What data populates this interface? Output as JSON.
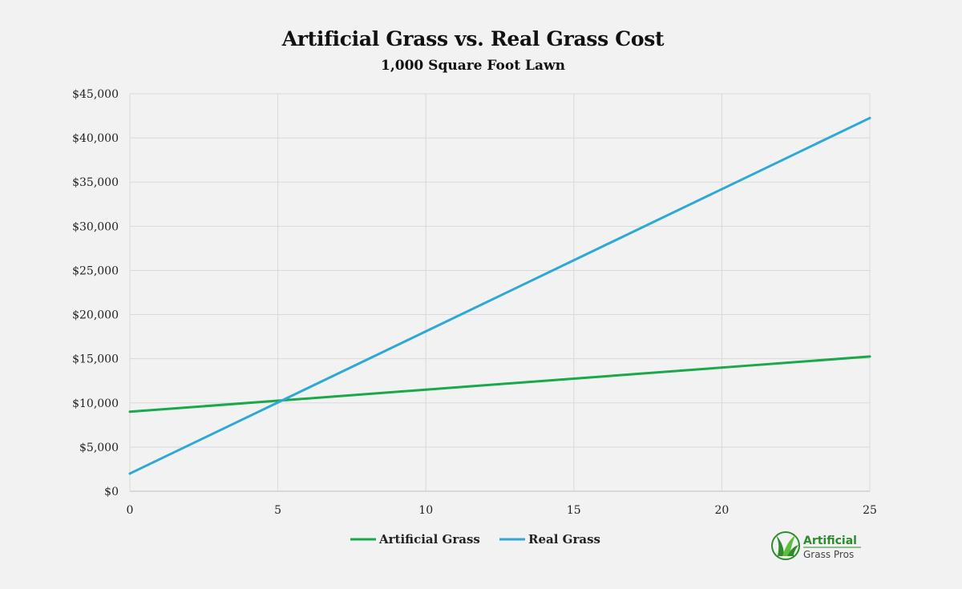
{
  "chart_data": {
    "type": "line",
    "title": "Artificial Grass vs. Real Grass Cost",
    "subtitle": "1,000 Square Foot Lawn",
    "xlabel": "",
    "ylabel": "",
    "x": [
      0,
      5,
      10,
      15,
      20,
      25
    ],
    "x_ticks": [
      "0",
      "5",
      "10",
      "15",
      "20",
      "25"
    ],
    "y_ticks": [
      "$0",
      "$5,000",
      "$10,000",
      "$15,000",
      "$20,000",
      "$25,000",
      "$30,000",
      "$35,000",
      "$40,000",
      "$45,000"
    ],
    "xlim": [
      0,
      25
    ],
    "ylim": [
      0,
      45000
    ],
    "grid": true,
    "legend_position": "bottom",
    "series": [
      {
        "name": "Artificial Grass",
        "color": "#1aa84a",
        "values": [
          9000,
          10250,
          11500,
          12750,
          14000,
          15250
        ]
      },
      {
        "name": "Real Grass",
        "color": "#2ea8d4",
        "values": [
          2000,
          10050,
          18100,
          26150,
          34200,
          42250
        ]
      }
    ]
  },
  "logo": {
    "line1": "Artificial",
    "line2": "Grass Pros",
    "icon": "grass-leaf-icon",
    "color": "#2e8b2e"
  }
}
